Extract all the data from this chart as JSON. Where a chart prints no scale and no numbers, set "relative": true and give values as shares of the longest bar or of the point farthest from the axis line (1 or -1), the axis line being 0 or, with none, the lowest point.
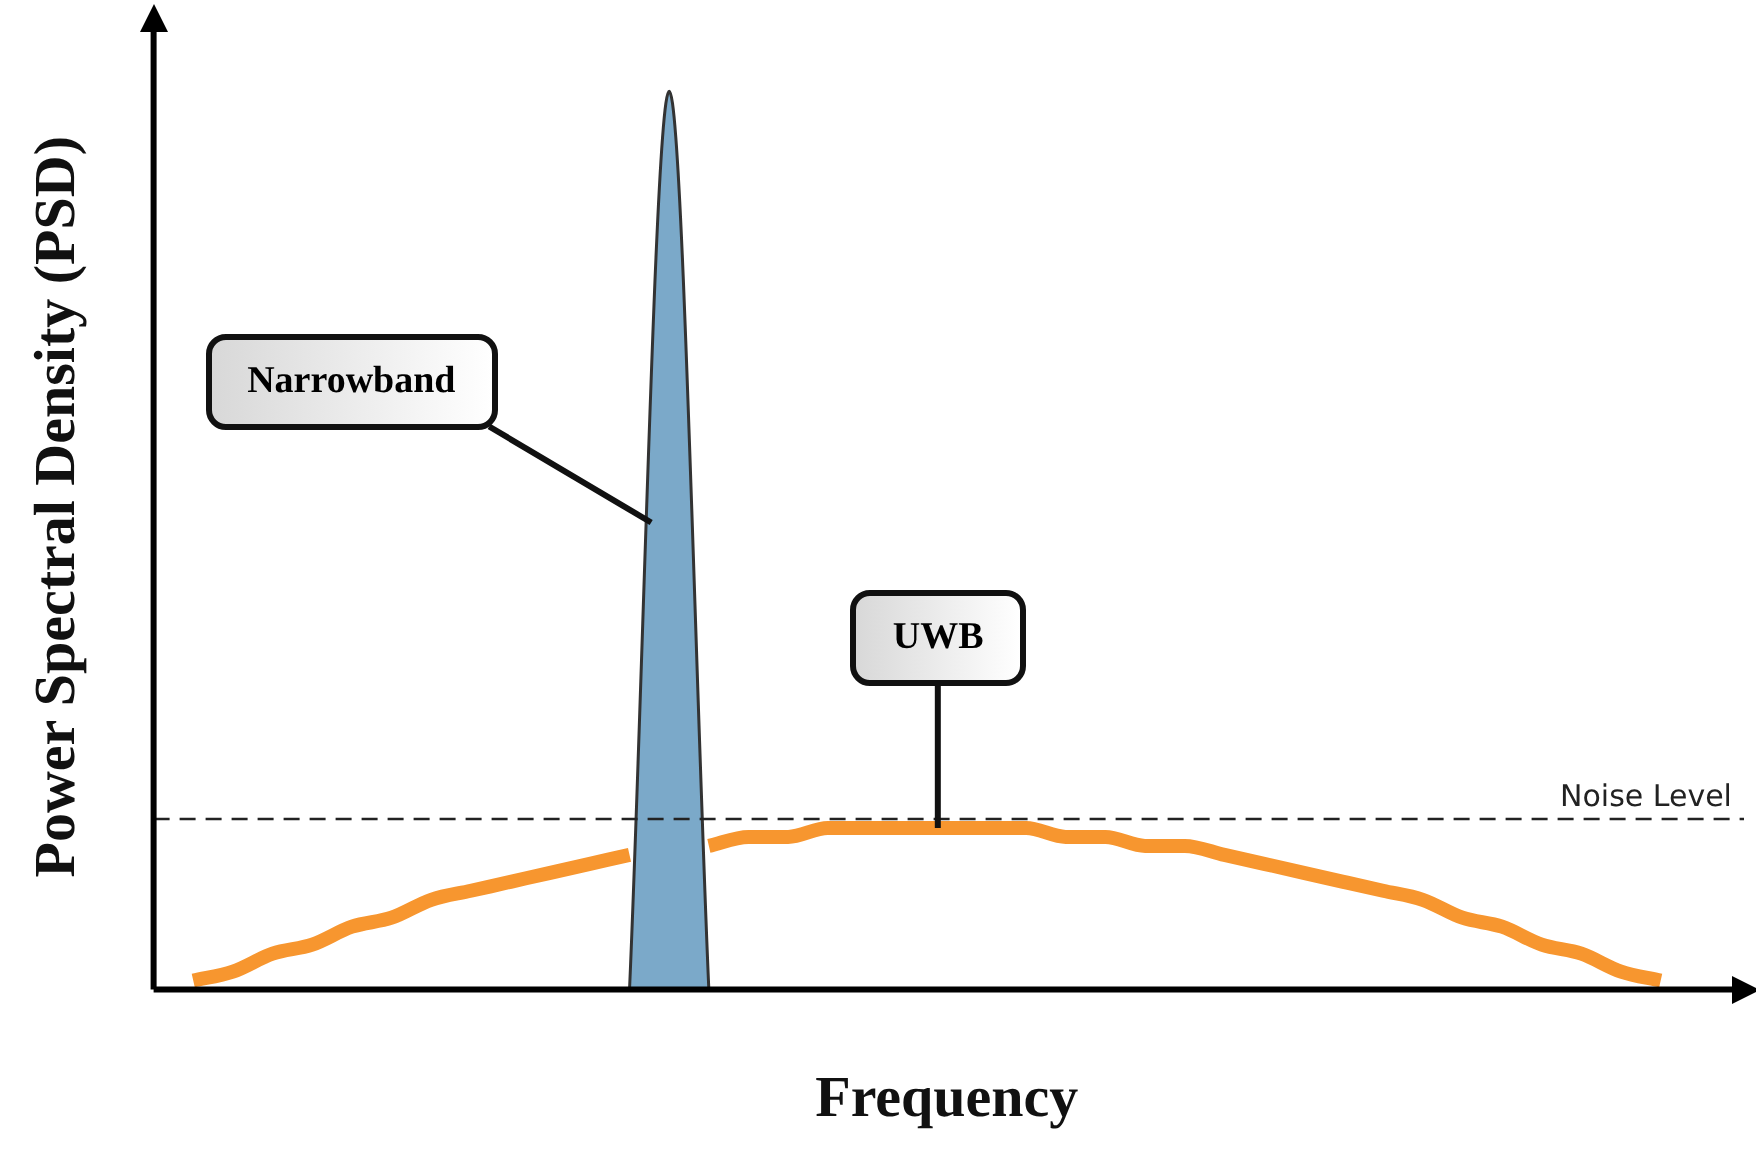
{
  "chart_data": {
    "type": "line",
    "xlabel": "Frequency",
    "ylabel": "Power Spectral Density (PSD)",
    "relative": true,
    "grid": false,
    "legend": false,
    "marker": "none",
    "categories": [
      null,
      null,
      null,
      null,
      null,
      null,
      null,
      null,
      null,
      null,
      null,
      null,
      null,
      null,
      null,
      null,
      null,
      null,
      null,
      null,
      null,
      null,
      null,
      null,
      null,
      null,
      null,
      null,
      null,
      null,
      null,
      null,
      null,
      null,
      null,
      null,
      null,
      null,
      null,
      null,
      null
    ],
    "series": [
      {
        "name": "UWB",
        "color": "#f7962f",
        "values": [
          null,
          0.01,
          0.02,
          0.04,
          0.05,
          0.07,
          0.08,
          0.1,
          0.11,
          0.12,
          0.13,
          0.14,
          0.15,
          null,
          0.16,
          0.17,
          0.17,
          0.18,
          0.18,
          0.18,
          0.18,
          0.18,
          0.18,
          0.17,
          0.17,
          0.16,
          0.16,
          0.15,
          0.14,
          0.13,
          0.12,
          0.11,
          0.1,
          0.08,
          0.07,
          0.05,
          0.04,
          0.02,
          0.01,
          null,
          null
        ]
      },
      {
        "name": "Narrowband",
        "type": "area",
        "color": "#7ba9c9",
        "values": [
          null,
          null,
          null,
          null,
          null,
          null,
          null,
          null,
          null,
          null,
          null,
          null,
          0,
          1,
          0,
          null,
          null,
          null,
          null,
          null,
          null,
          null,
          null,
          null,
          null,
          null,
          null,
          null,
          null,
          null,
          null,
          null,
          null,
          null,
          null,
          null,
          null,
          null,
          null,
          null,
          null
        ]
      }
    ],
    "ref_lines": [
      {
        "axis": "y",
        "value": 0.19,
        "label": "Noise Level",
        "color": "#222222",
        "line_style": "dashed"
      }
    ]
  }
}
